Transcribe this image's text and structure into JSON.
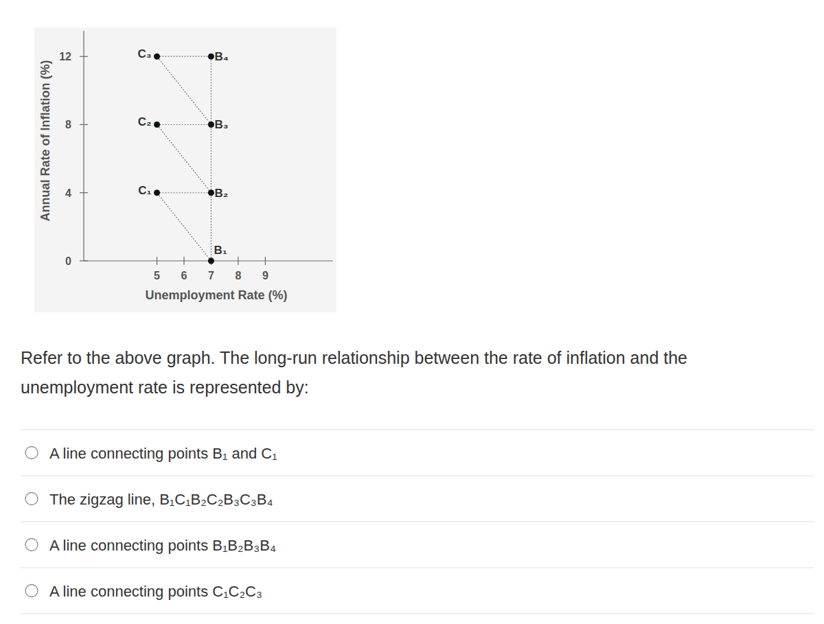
{
  "chart_data": {
    "type": "scatter",
    "x_label": "Unemployment Rate (%)",
    "y_label": "Annual Rate of Inflation (%)",
    "xlim": [
      2.3,
      11.5
    ],
    "xticks": [
      5,
      6,
      7,
      8,
      9
    ],
    "ylim": [
      0,
      13.5
    ],
    "yticks": [
      0,
      4,
      8,
      12
    ],
    "grid": false,
    "color": "#111111",
    "marker": "circle",
    "line_style": "dotted",
    "series": [
      {
        "x": [
          7,
          7,
          7,
          7
        ],
        "values": [
          0,
          4,
          8,
          12
        ],
        "labels": [
          "B₁",
          "B₂",
          "B₃",
          "B₄"
        ]
      },
      {
        "x": [
          5,
          5,
          5
        ],
        "values": [
          4,
          8,
          12
        ],
        "labels": [
          "C₁",
          "C₂",
          "C₃"
        ]
      }
    ]
  },
  "question": [
    "Refer to the above graph. The long-run relationship between the rate of inflation and the",
    "unemployment rate is represented by:"
  ],
  "options": [
    "A line connecting points B₁ and C₁",
    "The zigzag line, B₁C₁B₂C₂B₃C₃B₄",
    "A line connecting points B₁B₂B₃B₄",
    "A line connecting points C₁C₂C₃"
  ]
}
